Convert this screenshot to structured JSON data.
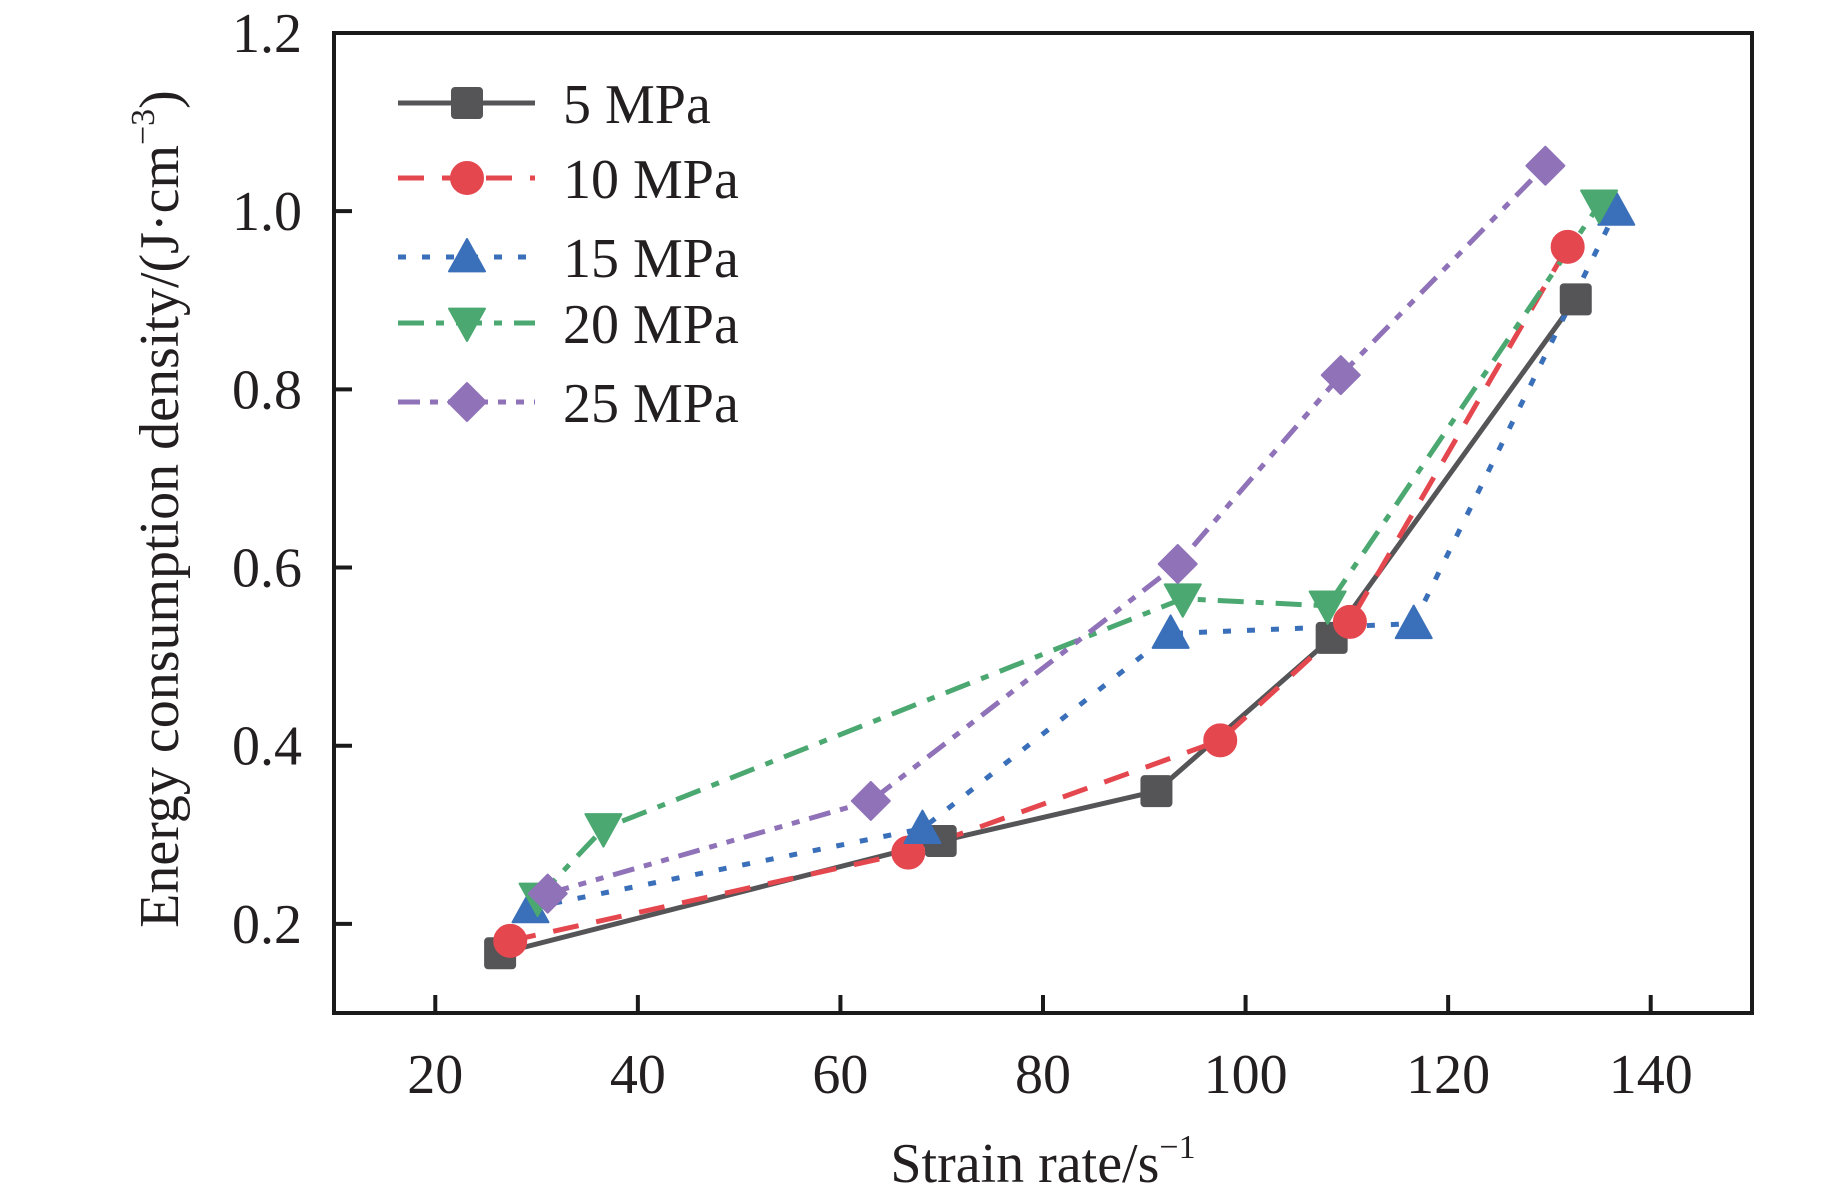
{
  "chart_data": {
    "type": "line",
    "title": "",
    "xlabel": "Strain rate/s",
    "xlabel_sup": "−1",
    "ylabel": "Energy consumption density/(J·cm",
    "ylabel_sup": "−3",
    "ylabel_close": ")",
    "xlim": [
      10,
      150
    ],
    "ylim": [
      0.1,
      1.2
    ],
    "xticks": [
      20,
      40,
      60,
      80,
      100,
      120,
      140
    ],
    "xtick_labels": [
      "20",
      "40",
      "60",
      "80",
      "100",
      "120",
      "140"
    ],
    "yticks": [
      0.2,
      0.4,
      0.6,
      0.8,
      1.0,
      1.2
    ],
    "ytick_labels": [
      "0.2",
      "0.4",
      "0.6",
      "0.8",
      "1.0",
      "1.2"
    ],
    "grid": false,
    "legend_position": "top-left",
    "series": [
      {
        "name": "5 MPa",
        "color": "#555558",
        "marker": "square",
        "line_style": "solid",
        "x": [
          26.4,
          69.9,
          91.2,
          108.5,
          132.6
        ],
        "y": [
          0.167,
          0.293,
          0.349,
          0.521,
          0.901
        ]
      },
      {
        "name": "10 MPa",
        "color": "#e5474f",
        "marker": "circle",
        "line_style": "dashed",
        "x": [
          27.4,
          66.7,
          97.5,
          110.3,
          131.8
        ],
        "y": [
          0.181,
          0.28,
          0.406,
          0.539,
          0.96
        ]
      },
      {
        "name": "15 MPa",
        "color": "#3a6fba",
        "marker": "triangle-up",
        "line_style": "dotted",
        "x": [
          29.4,
          68.1,
          92.6,
          116.6,
          136.6
        ],
        "y": [
          0.218,
          0.307,
          0.526,
          0.537,
          1.001
        ]
      },
      {
        "name": "20 MPa",
        "color": "#4ba871",
        "marker": "triangle-down",
        "line_style": "dash-dot",
        "x": [
          30.1,
          36.6,
          93.8,
          108.1,
          134.9
        ],
        "y": [
          0.229,
          0.307,
          0.565,
          0.557,
          1.007
        ]
      },
      {
        "name": "25 MPa",
        "color": "#8f72b8",
        "marker": "diamond",
        "line_style": "dash-dot-dot",
        "x": [
          31.1,
          63.0,
          93.3,
          109.4,
          129.6
        ],
        "y": [
          0.234,
          0.338,
          0.604,
          0.816,
          1.051
        ]
      }
    ]
  }
}
